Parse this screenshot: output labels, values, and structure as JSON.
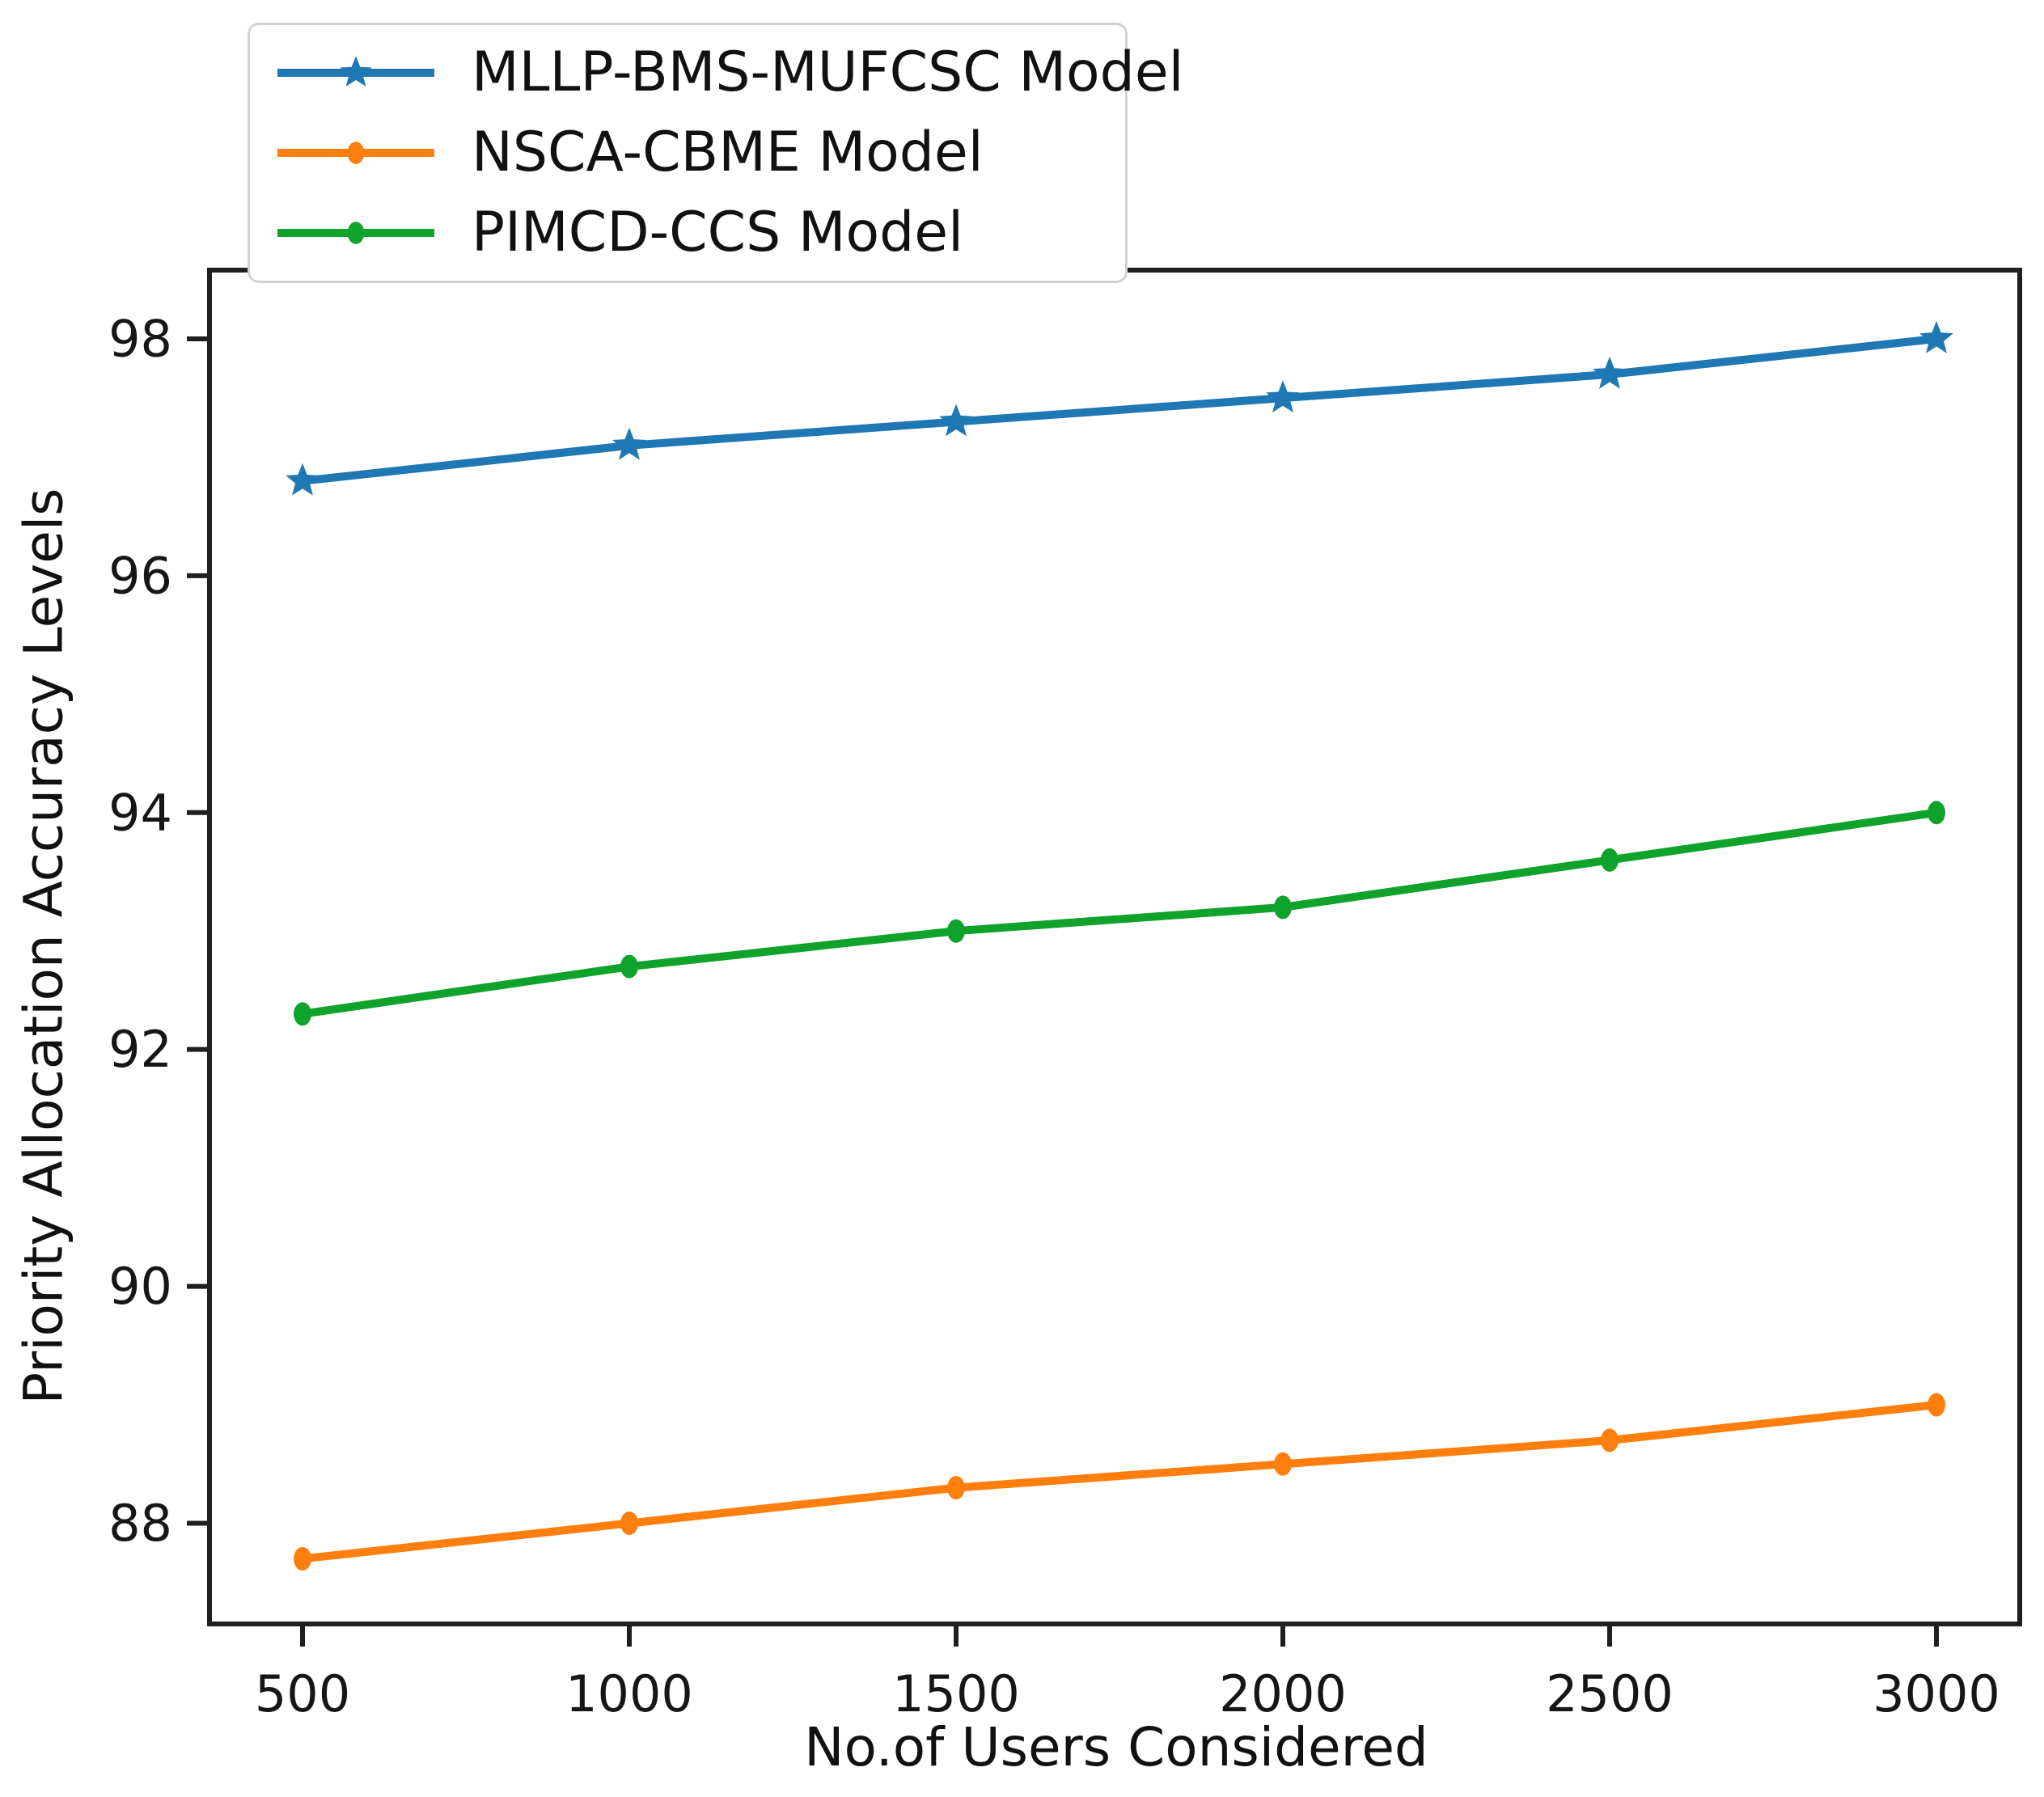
{
  "figure": {
    "background": "#ffffff",
    "text_color": "#111111",
    "spine_color": "#1f1f1f",
    "legend_border_color": "#d2d2d2"
  },
  "chart_data": {
    "type": "line",
    "title": "",
    "xlabel": "No.of Users Considered",
    "ylabel": "Priority Allocation Accuracy Levels",
    "x": [
      500,
      1000,
      1500,
      2000,
      2500,
      3000
    ],
    "xtick_labels": [
      "500",
      "1000",
      "1500",
      "2000",
      "2500",
      "3000"
    ],
    "yticks": [
      88,
      90,
      92,
      94,
      96,
      98
    ],
    "ylim": [
      87.15,
      98.58
    ],
    "grid": false,
    "legend_position": "upper-left",
    "series": [
      {
        "name": "MLLP-BMS-MUFCSC Model",
        "color": "#1f77b4",
        "marker": "star",
        "values": [
          96.8,
          97.1,
          97.3,
          97.5,
          97.7,
          98.0
        ]
      },
      {
        "name": "NSCA-CBME Model",
        "color": "#ff7f0e",
        "marker": "circle",
        "values": [
          87.7,
          88.0,
          88.3,
          88.5,
          88.7,
          89.0
        ]
      },
      {
        "name": "PIMCD-CCS Model",
        "color": "#0fa32c",
        "marker": "circle",
        "values": [
          92.3,
          92.7,
          93.0,
          93.2,
          93.6,
          94.0
        ]
      }
    ]
  }
}
